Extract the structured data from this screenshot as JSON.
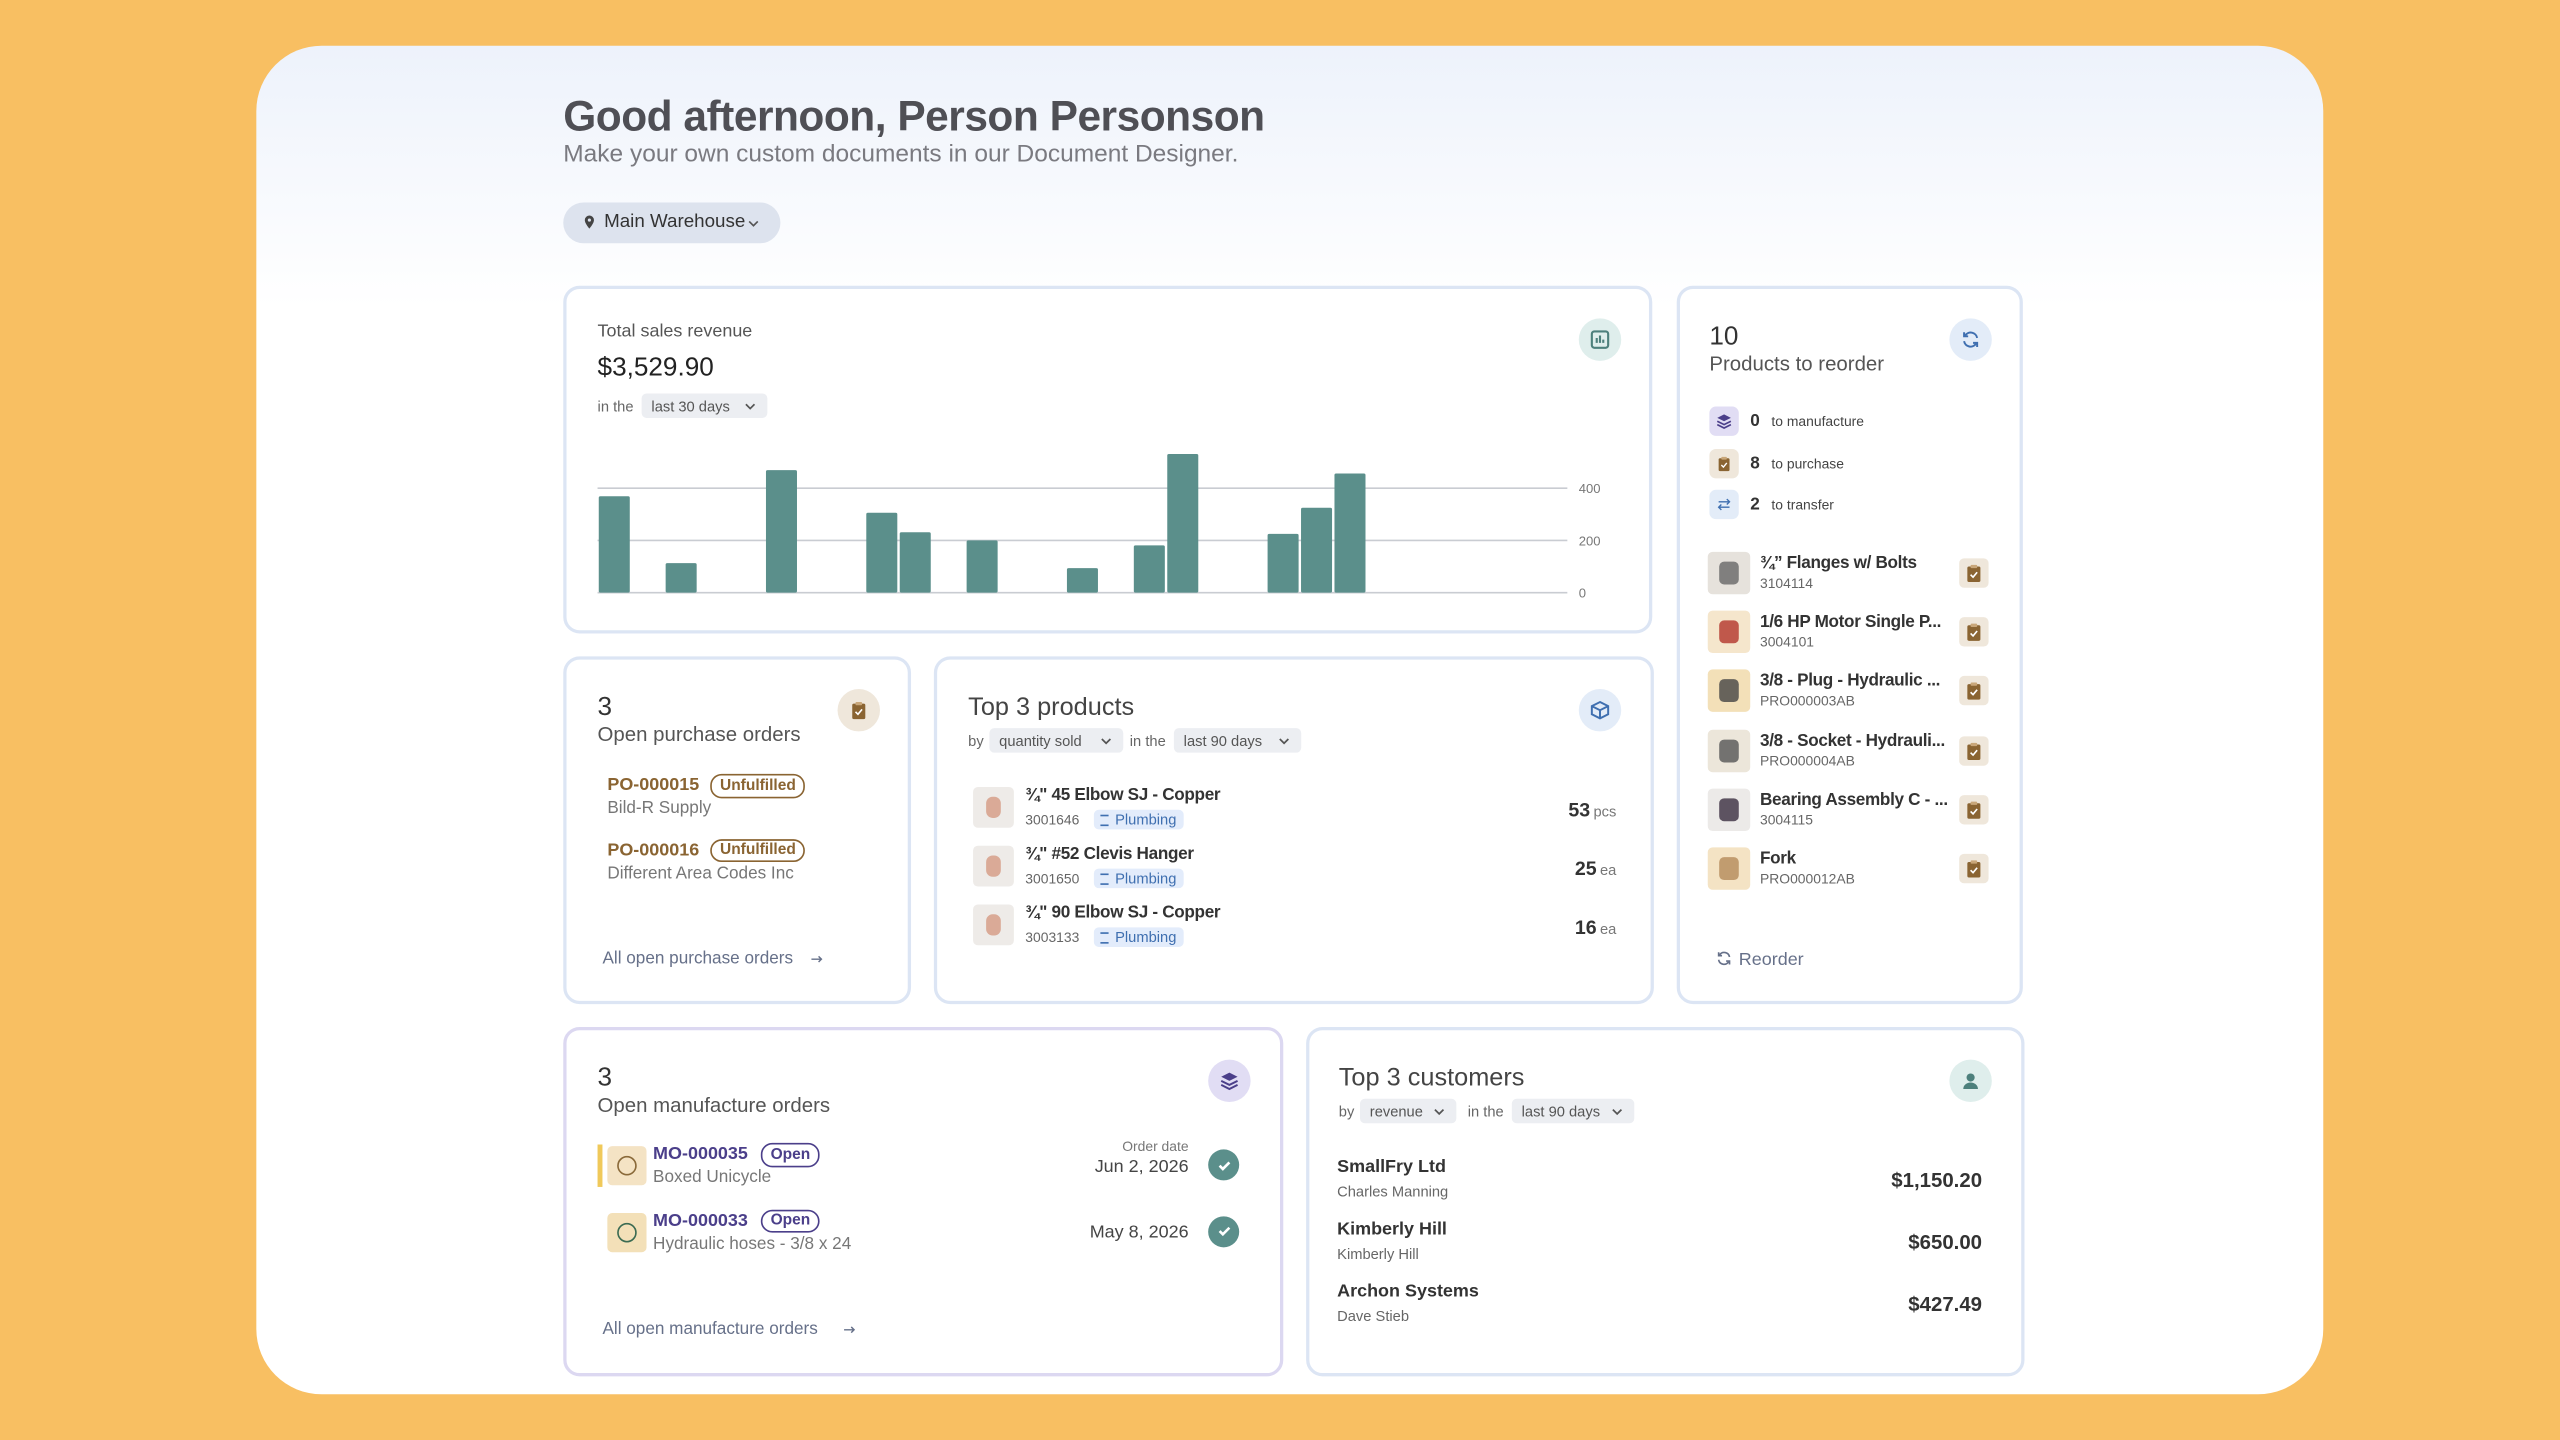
{
  "header": {
    "title": "Good afternoon, Person Personson",
    "subtitle": "Make your own custom documents in our Document Designer.",
    "location": "Main Warehouse"
  },
  "sales": {
    "label": "Total sales revenue",
    "amount": "$3,529.90",
    "period_prefix": "in the",
    "period": "last 30 days",
    "chart": {
      "type": "bar",
      "color": "#5b8f8b",
      "values": [
        369,
        0,
        113,
        0,
        0,
        469,
        0,
        0,
        306,
        231,
        0,
        200,
        0,
        0,
        94,
        0,
        181,
        531,
        0,
        0,
        225,
        325,
        456,
        0,
        0,
        0,
        0,
        0,
        0
      ],
      "ylim": [
        0,
        550
      ],
      "yticks": [
        0,
        200,
        400
      ],
      "grid": true
    }
  },
  "reorder": {
    "count": 10,
    "label": "Products to reorder",
    "breakdown": [
      {
        "count": 0,
        "label": "to manufacture"
      },
      {
        "count": 8,
        "label": "to purchase"
      },
      {
        "count": 2,
        "label": "to transfer"
      }
    ],
    "items": [
      {
        "name": "¾” Flanges w/ Bolts",
        "sku": "3104114"
      },
      {
        "name": "1/6 HP Motor Single P...",
        "sku": "3004101"
      },
      {
        "name": "3/8 - Plug - Hydraulic ...",
        "sku": "PRO000003AB"
      },
      {
        "name": "3/8 - Socket - Hydrauli...",
        "sku": "PRO000004AB"
      },
      {
        "name": "Bearing Assembly C - ...",
        "sku": "3004115"
      },
      {
        "name": "Fork",
        "sku": "PRO000012AB"
      }
    ],
    "action": "Reorder"
  },
  "purchase_orders": {
    "count": 3,
    "label": "Open purchase orders",
    "orders": [
      {
        "id": "PO-000015",
        "status": "Unfulfilled",
        "supplier": "Bild-R Supply"
      },
      {
        "id": "PO-000016",
        "status": "Unfulfilled",
        "supplier": "Different Area Codes Inc"
      }
    ],
    "link": "All open purchase orders"
  },
  "top_products": {
    "title": "Top 3 products",
    "by_prefix": "by",
    "by": "quantity sold",
    "period_prefix": "in the",
    "period": "last 90 days",
    "items": [
      {
        "name": "¾\" 45 Elbow SJ - Copper",
        "sku": "3001646",
        "tag": "Plumbing",
        "qty": 53,
        "unit": "pcs"
      },
      {
        "name": "¾\" #52 Clevis Hanger",
        "sku": "3001650",
        "tag": "Plumbing",
        "qty": 25,
        "unit": "ea"
      },
      {
        "name": "¾\" 90 Elbow SJ - Copper",
        "sku": "3003133",
        "tag": "Plumbing",
        "qty": 16,
        "unit": "ea"
      }
    ]
  },
  "manufacture_orders": {
    "count": 3,
    "label": "Open manufacture orders",
    "orders": [
      {
        "id": "MO-000035",
        "status": "Open",
        "product": "Boxed Unicycle",
        "date_label": "Order date",
        "date": "Jun 2, 2026"
      },
      {
        "id": "MO-000033",
        "status": "Open",
        "product": "Hydraulic hoses - 3/8 x 24",
        "date": "May 8, 2026"
      }
    ],
    "link": "All open manufacture orders"
  },
  "customers": {
    "title": "Top 3 customers",
    "by_prefix": "by",
    "by": "revenue",
    "period_prefix": "in the",
    "period": "last 90 days",
    "items": [
      {
        "name": "SmallFry Ltd",
        "contact": "Charles Manning",
        "revenue": "$1,150.20"
      },
      {
        "name": "Kimberly Hill",
        "contact": "Kimberly Hill",
        "revenue": "$650.00"
      },
      {
        "name": "Archon Systems",
        "contact": "Dave Stieb",
        "revenue": "$427.49"
      }
    ]
  }
}
